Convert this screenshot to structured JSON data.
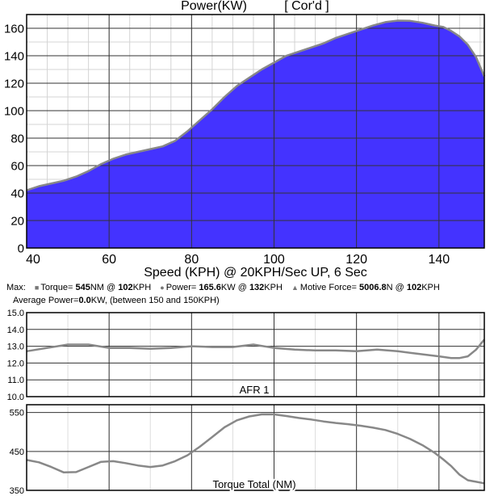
{
  "chart_data": [
    {
      "type": "area",
      "title": "Power(KW)",
      "title_tag": "[ Cor'd ]",
      "xlabel": "Speed (KPH) @ 20KPH/Sec UP, 6 Sec",
      "ylabel": "",
      "xlim": [
        40,
        151
      ],
      "ylim": [
        0,
        170
      ],
      "x_ticks": [
        40,
        60,
        80,
        100,
        120,
        140
      ],
      "y_ticks": [
        0,
        20,
        40,
        60,
        80,
        100,
        120,
        140,
        160
      ],
      "grid": true,
      "fill_color": "#4433ff",
      "line_color": "#888888",
      "series": [
        {
          "x": [
            40,
            43,
            46,
            49,
            52,
            55,
            58,
            61,
            64,
            67,
            70,
            73,
            76,
            79,
            82,
            85,
            88,
            91,
            94,
            97,
            100,
            103,
            106,
            109,
            112,
            115,
            118,
            121,
            124,
            127,
            130,
            133,
            136,
            139,
            141,
            143,
            145,
            147,
            149,
            151
          ],
          "values": [
            42,
            45,
            47,
            49,
            52,
            56,
            61,
            65,
            68,
            70,
            72,
            74,
            78,
            85,
            93,
            101,
            110,
            118,
            124,
            130,
            135,
            140,
            143,
            146,
            149,
            153,
            156,
            159,
            162,
            164.5,
            165.6,
            165.4,
            164,
            162,
            161,
            158,
            154,
            148,
            139,
            125
          ]
        }
      ]
    },
    {
      "type": "line",
      "title": "AFR 1",
      "xlim": [
        40,
        151
      ],
      "ylim": [
        10.0,
        15.0
      ],
      "y_ticks": [
        "10.0",
        "11.0",
        "12.0",
        "13.0",
        "14.0",
        "15.0"
      ],
      "grid": true,
      "line_color": "#888888",
      "series": [
        {
          "x": [
            40,
            45,
            50,
            55,
            60,
            65,
            70,
            75,
            80,
            85,
            90,
            95,
            100,
            105,
            110,
            115,
            120,
            125,
            130,
            135,
            140,
            143,
            145,
            147,
            149,
            151
          ],
          "values": [
            12.7,
            12.9,
            13.1,
            13.1,
            12.9,
            12.9,
            12.85,
            12.9,
            13.0,
            12.95,
            12.95,
            13.1,
            12.9,
            12.8,
            12.75,
            12.75,
            12.7,
            12.8,
            12.7,
            12.55,
            12.4,
            12.3,
            12.3,
            12.4,
            12.8,
            13.4
          ]
        }
      ]
    },
    {
      "type": "line",
      "title": "Torque Total (NM)",
      "xlim": [
        40,
        151
      ],
      "ylim": [
        350,
        570
      ],
      "y_ticks": [
        "350",
        "450",
        "550"
      ],
      "grid": true,
      "line_color": "#888888",
      "series": [
        {
          "x": [
            40,
            43,
            46,
            49,
            52,
            55,
            58,
            61,
            64,
            67,
            70,
            73,
            76,
            79,
            82,
            85,
            88,
            91,
            94,
            97,
            100,
            103,
            106,
            109,
            112,
            115,
            118,
            121,
            124,
            127,
            130,
            133,
            136,
            139,
            141,
            143,
            145,
            147,
            149,
            151
          ],
          "values": [
            428,
            422,
            410,
            396,
            397,
            410,
            423,
            425,
            420,
            414,
            410,
            414,
            425,
            440,
            462,
            487,
            512,
            530,
            540,
            545,
            545,
            541,
            536,
            532,
            527,
            523,
            520,
            516,
            511,
            505,
            495,
            482,
            466,
            446,
            430,
            412,
            390,
            376,
            372,
            368
          ]
        }
      ]
    }
  ],
  "summary": {
    "max_label": "Max:",
    "torque_label": "Torque=",
    "torque_value": "545",
    "torque_unit": "NM @",
    "torque_at": "102",
    "torque_at_unit": "KPH",
    "power_label": "Power=",
    "power_value": "165.6",
    "power_unit": "KW @",
    "power_at": "132",
    "power_at_unit": "KPH",
    "force_label": "Motive Force=",
    "force_value": "5006.8",
    "force_unit": "N @",
    "force_at": "102",
    "force_at_unit": "KPH",
    "avg_label": "Average Power=",
    "avg_value": "0.0",
    "avg_rest": "KW, (between 150 and 150KPH)"
  },
  "symbols": {
    "torque": "■",
    "power": "●",
    "force": "▲"
  }
}
